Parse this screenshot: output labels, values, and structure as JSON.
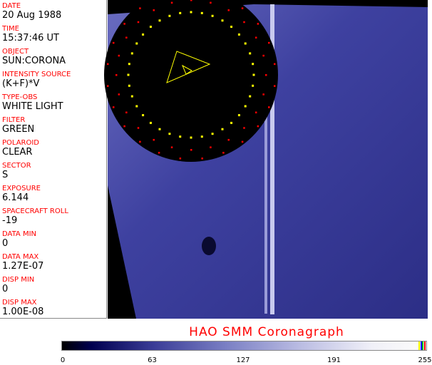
{
  "fields": [
    {
      "label": "DATE",
      "value": "20 Aug 1988"
    },
    {
      "label": "TIME",
      "value": "15:37:46 UT"
    },
    {
      "label": "OBJECT",
      "value": "SUN:CORONA"
    },
    {
      "label": "INTENSITY SOURCE",
      "value": "(K+F)*V"
    },
    {
      "label": "TYPE-OBS",
      "value": "WHITE LIGHT"
    },
    {
      "label": "FILTER",
      "value": "GREEN"
    },
    {
      "label": "POLAROID",
      "value": "CLEAR"
    },
    {
      "label": "SECTOR",
      "value": "S"
    },
    {
      "label": "EXPOSURE",
      "value": "6.144"
    },
    {
      "label": "SPACECRAFT ROLL",
      "value": "-19"
    },
    {
      "label": "DATA MIN",
      "value": "0"
    },
    {
      "label": "DATA MAX",
      "value": "1.27E-07"
    },
    {
      "label": "DISP MIN",
      "value": "0"
    },
    {
      "label": "DISP MAX",
      "value": "1.00E-08"
    }
  ],
  "title": "HAO  SMM Coronagraph",
  "colorbar": {
    "ticks": [
      "0",
      "63",
      "127",
      "191",
      "255"
    ],
    "min": 0,
    "max": 255,
    "end_colors": [
      "#ffff00",
      "#0000ff",
      "#00c000",
      "#ff0000"
    ]
  },
  "colors": {
    "label": "#ff0000",
    "image_blue": "#3c3f9a",
    "overlay_yellow": "#ffff00",
    "overlay_red": "#ff0000"
  }
}
